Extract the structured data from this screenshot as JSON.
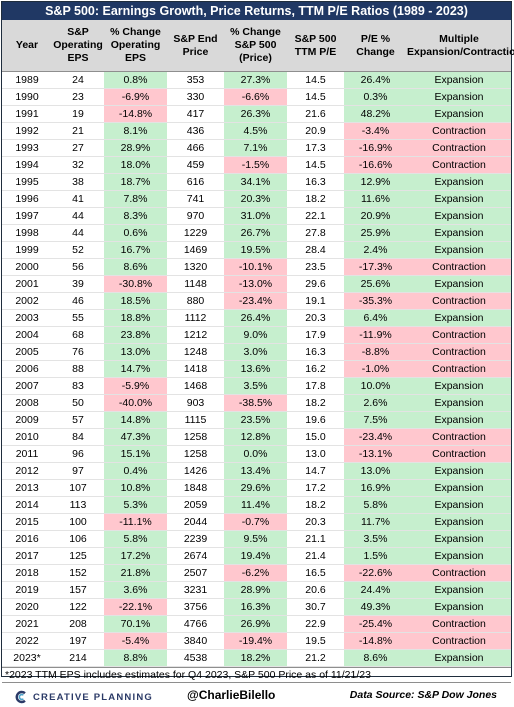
{
  "title": "S&P 500: Earnings Growth, Price Returns, TTM P/E Ratios (1989 - 2023)",
  "columns": [
    {
      "line1": "Year",
      "line2": "",
      "line3": ""
    },
    {
      "line1": "S&P",
      "line2": "Operating",
      "line3": "EPS"
    },
    {
      "line1": "% Change",
      "line2": "Operating",
      "line3": "EPS"
    },
    {
      "line1": "S&P End",
      "line2": "Price",
      "line3": ""
    },
    {
      "line1": "% Change",
      "line2": "S&P 500",
      "line3": "(Price)"
    },
    {
      "line1": "S&P 500",
      "line2": "TTM P/E",
      "line3": ""
    },
    {
      "line1": "P/E %",
      "line2": "Change",
      "line3": ""
    },
    {
      "line1": "Multiple",
      "line2": "Expansion/Contraction",
      "line3": ""
    }
  ],
  "colors": {
    "positive": "#c6efce",
    "negative": "#ffc7ce",
    "header": "#d9d9d9",
    "title_bar": "#203864"
  },
  "rows": [
    {
      "year": "1989",
      "eps": "24",
      "eps_chg": "0.8%",
      "price": "353",
      "price_chg": "27.3%",
      "pe": "14.5",
      "pe_chg": "26.4%",
      "multiple": "Expansion"
    },
    {
      "year": "1990",
      "eps": "23",
      "eps_chg": "-6.9%",
      "price": "330",
      "price_chg": "-6.6%",
      "pe": "14.5",
      "pe_chg": "0.3%",
      "multiple": "Expansion"
    },
    {
      "year": "1991",
      "eps": "19",
      "eps_chg": "-14.8%",
      "price": "417",
      "price_chg": "26.3%",
      "pe": "21.6",
      "pe_chg": "48.2%",
      "multiple": "Expansion"
    },
    {
      "year": "1992",
      "eps": "21",
      "eps_chg": "8.1%",
      "price": "436",
      "price_chg": "4.5%",
      "pe": "20.9",
      "pe_chg": "-3.4%",
      "multiple": "Contraction"
    },
    {
      "year": "1993",
      "eps": "27",
      "eps_chg": "28.9%",
      "price": "466",
      "price_chg": "7.1%",
      "pe": "17.3",
      "pe_chg": "-16.9%",
      "multiple": "Contraction"
    },
    {
      "year": "1994",
      "eps": "32",
      "eps_chg": "18.0%",
      "price": "459",
      "price_chg": "-1.5%",
      "pe": "14.5",
      "pe_chg": "-16.6%",
      "multiple": "Contraction"
    },
    {
      "year": "1995",
      "eps": "38",
      "eps_chg": "18.7%",
      "price": "616",
      "price_chg": "34.1%",
      "pe": "16.3",
      "pe_chg": "12.9%",
      "multiple": "Expansion"
    },
    {
      "year": "1996",
      "eps": "41",
      "eps_chg": "7.8%",
      "price": "741",
      "price_chg": "20.3%",
      "pe": "18.2",
      "pe_chg": "11.6%",
      "multiple": "Expansion"
    },
    {
      "year": "1997",
      "eps": "44",
      "eps_chg": "8.3%",
      "price": "970",
      "price_chg": "31.0%",
      "pe": "22.1",
      "pe_chg": "20.9%",
      "multiple": "Expansion"
    },
    {
      "year": "1998",
      "eps": "44",
      "eps_chg": "0.6%",
      "price": "1229",
      "price_chg": "26.7%",
      "pe": "27.8",
      "pe_chg": "25.9%",
      "multiple": "Expansion"
    },
    {
      "year": "1999",
      "eps": "52",
      "eps_chg": "16.7%",
      "price": "1469",
      "price_chg": "19.5%",
      "pe": "28.4",
      "pe_chg": "2.4%",
      "multiple": "Expansion"
    },
    {
      "year": "2000",
      "eps": "56",
      "eps_chg": "8.6%",
      "price": "1320",
      "price_chg": "-10.1%",
      "pe": "23.5",
      "pe_chg": "-17.3%",
      "multiple": "Contraction"
    },
    {
      "year": "2001",
      "eps": "39",
      "eps_chg": "-30.8%",
      "price": "1148",
      "price_chg": "-13.0%",
      "pe": "29.6",
      "pe_chg": "25.6%",
      "multiple": "Expansion"
    },
    {
      "year": "2002",
      "eps": "46",
      "eps_chg": "18.5%",
      "price": "880",
      "price_chg": "-23.4%",
      "pe": "19.1",
      "pe_chg": "-35.3%",
      "multiple": "Contraction"
    },
    {
      "year": "2003",
      "eps": "55",
      "eps_chg": "18.8%",
      "price": "1112",
      "price_chg": "26.4%",
      "pe": "20.3",
      "pe_chg": "6.4%",
      "multiple": "Expansion"
    },
    {
      "year": "2004",
      "eps": "68",
      "eps_chg": "23.8%",
      "price": "1212",
      "price_chg": "9.0%",
      "pe": "17.9",
      "pe_chg": "-11.9%",
      "multiple": "Contraction"
    },
    {
      "year": "2005",
      "eps": "76",
      "eps_chg": "13.0%",
      "price": "1248",
      "price_chg": "3.0%",
      "pe": "16.3",
      "pe_chg": "-8.8%",
      "multiple": "Contraction"
    },
    {
      "year": "2006",
      "eps": "88",
      "eps_chg": "14.7%",
      "price": "1418",
      "price_chg": "13.6%",
      "pe": "16.2",
      "pe_chg": "-1.0%",
      "multiple": "Contraction"
    },
    {
      "year": "2007",
      "eps": "83",
      "eps_chg": "-5.9%",
      "price": "1468",
      "price_chg": "3.5%",
      "pe": "17.8",
      "pe_chg": "10.0%",
      "multiple": "Expansion"
    },
    {
      "year": "2008",
      "eps": "50",
      "eps_chg": "-40.0%",
      "price": "903",
      "price_chg": "-38.5%",
      "pe": "18.2",
      "pe_chg": "2.6%",
      "multiple": "Expansion"
    },
    {
      "year": "2009",
      "eps": "57",
      "eps_chg": "14.8%",
      "price": "1115",
      "price_chg": "23.5%",
      "pe": "19.6",
      "pe_chg": "7.5%",
      "multiple": "Expansion"
    },
    {
      "year": "2010",
      "eps": "84",
      "eps_chg": "47.3%",
      "price": "1258",
      "price_chg": "12.8%",
      "pe": "15.0",
      "pe_chg": "-23.4%",
      "multiple": "Contraction"
    },
    {
      "year": "2011",
      "eps": "96",
      "eps_chg": "15.1%",
      "price": "1258",
      "price_chg": "0.0%",
      "pe": "13.0",
      "pe_chg": "-13.1%",
      "multiple": "Contraction"
    },
    {
      "year": "2012",
      "eps": "97",
      "eps_chg": "0.4%",
      "price": "1426",
      "price_chg": "13.4%",
      "pe": "14.7",
      "pe_chg": "13.0%",
      "multiple": "Expansion"
    },
    {
      "year": "2013",
      "eps": "107",
      "eps_chg": "10.8%",
      "price": "1848",
      "price_chg": "29.6%",
      "pe": "17.2",
      "pe_chg": "16.9%",
      "multiple": "Expansion"
    },
    {
      "year": "2014",
      "eps": "113",
      "eps_chg": "5.3%",
      "price": "2059",
      "price_chg": "11.4%",
      "pe": "18.2",
      "pe_chg": "5.8%",
      "multiple": "Expansion"
    },
    {
      "year": "2015",
      "eps": "100",
      "eps_chg": "-11.1%",
      "price": "2044",
      "price_chg": "-0.7%",
      "pe": "20.3",
      "pe_chg": "11.7%",
      "multiple": "Expansion"
    },
    {
      "year": "2016",
      "eps": "106",
      "eps_chg": "5.8%",
      "price": "2239",
      "price_chg": "9.5%",
      "pe": "21.1",
      "pe_chg": "3.5%",
      "multiple": "Expansion"
    },
    {
      "year": "2017",
      "eps": "125",
      "eps_chg": "17.2%",
      "price": "2674",
      "price_chg": "19.4%",
      "pe": "21.4",
      "pe_chg": "1.5%",
      "multiple": "Expansion"
    },
    {
      "year": "2018",
      "eps": "152",
      "eps_chg": "21.8%",
      "price": "2507",
      "price_chg": "-6.2%",
      "pe": "16.5",
      "pe_chg": "-22.6%",
      "multiple": "Contraction"
    },
    {
      "year": "2019",
      "eps": "157",
      "eps_chg": "3.6%",
      "price": "3231",
      "price_chg": "28.9%",
      "pe": "20.6",
      "pe_chg": "24.4%",
      "multiple": "Expansion"
    },
    {
      "year": "2020",
      "eps": "122",
      "eps_chg": "-22.1%",
      "price": "3756",
      "price_chg": "16.3%",
      "pe": "30.7",
      "pe_chg": "49.3%",
      "multiple": "Expansion"
    },
    {
      "year": "2021",
      "eps": "208",
      "eps_chg": "70.1%",
      "price": "4766",
      "price_chg": "26.9%",
      "pe": "22.9",
      "pe_chg": "-25.4%",
      "multiple": "Contraction"
    },
    {
      "year": "2022",
      "eps": "197",
      "eps_chg": "-5.4%",
      "price": "3840",
      "price_chg": "-19.4%",
      "pe": "19.5",
      "pe_chg": "-14.8%",
      "multiple": "Contraction"
    },
    {
      "year": "2023*",
      "eps": "214",
      "eps_chg": "8.8%",
      "price": "4538",
      "price_chg": "18.2%",
      "pe": "21.2",
      "pe_chg": "8.6%",
      "multiple": "Expansion"
    }
  ],
  "footnote": "*2023 TTM EPS includes estimates for Q4 2023, S&P 500 Price as of 11/21/23",
  "footer": {
    "logo_text": "CREATIVE PLANNING",
    "logo_icon": "creative-planning-c-logo",
    "handle": "@CharlieBilello",
    "source": "Data Source: S&P Dow Jones"
  }
}
